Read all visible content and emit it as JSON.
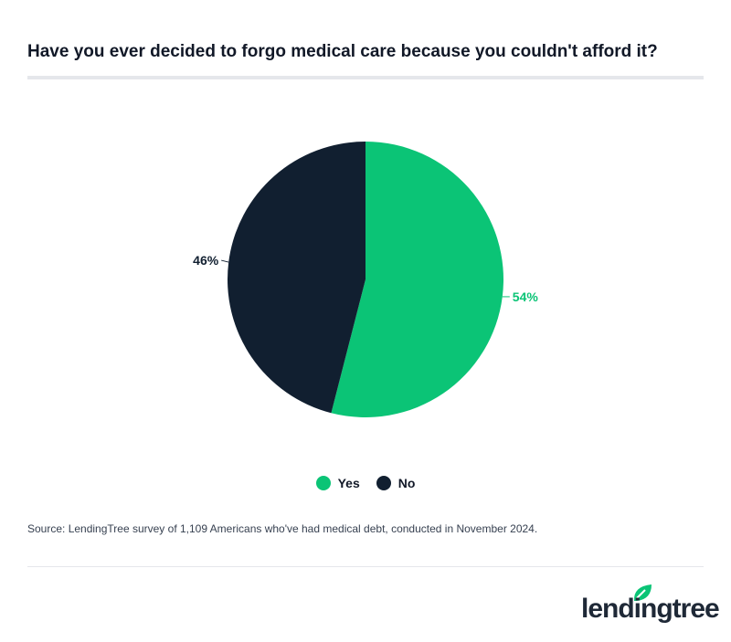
{
  "chart_data": {
    "type": "pie",
    "title": "Have you ever decided to forgo medical care because you couldn't afford it?",
    "slices": [
      {
        "name": "Yes",
        "value": 54,
        "label": "54%",
        "color": "#0bc476"
      },
      {
        "name": "No",
        "value": 46,
        "label": "46%",
        "color": "#111f30"
      }
    ],
    "legend_position": "bottom"
  },
  "source": "Source: LendingTree survey of 1,109 Americans who've had medical debt, conducted in November 2024.",
  "logo": "lendingtree"
}
